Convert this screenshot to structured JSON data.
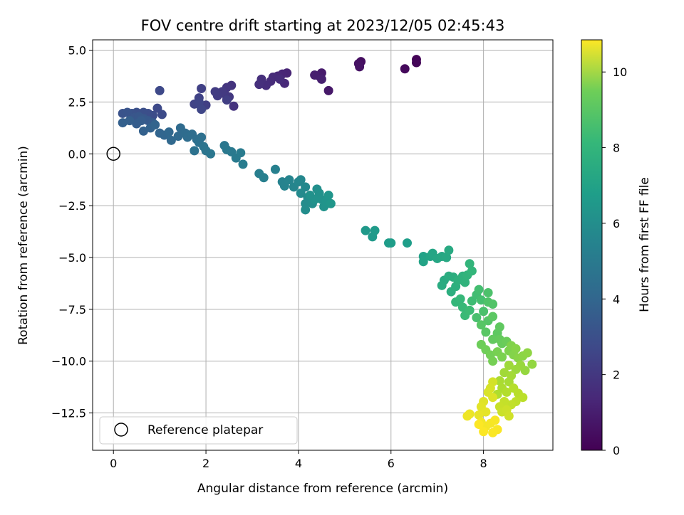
{
  "chart_data": {
    "type": "scatter",
    "title": "FOV centre drift starting at 2023/12/05 02:45:43",
    "xlabel": "Angular distance from reference (arcmin)",
    "ylabel": "Rotation from reference (arcmin)",
    "xlim": [
      -0.45,
      9.5
    ],
    "ylim": [
      -14.3,
      5.5
    ],
    "xticks": [
      0,
      2,
      4,
      6,
      8
    ],
    "xtick_labels": [
      "0",
      "2",
      "4",
      "6",
      "8"
    ],
    "yticks": [
      5.0,
      2.5,
      0.0,
      -2.5,
      -5.0,
      -7.5,
      -10.0,
      -12.5
    ],
    "ytick_labels": [
      "5.0",
      "2.5",
      "0.0",
      "−2.5",
      "−5.0",
      "−7.5",
      "−10.0",
      "−12.5"
    ],
    "grid": true,
    "legend": {
      "position": "lower-left",
      "label": "Reference platepar"
    },
    "reference_point": {
      "x": 0.0,
      "y": 0.0
    },
    "colorbar": {
      "label": "Hours from first FF file",
      "colormap": "viridis",
      "range": [
        0,
        10.85
      ],
      "ticks": [
        0,
        2,
        4,
        6,
        8,
        10
      ],
      "tick_labels": [
        "0",
        "2",
        "4",
        "6",
        "8",
        "10"
      ]
    },
    "points": [
      [
        6.55,
        4.55,
        0.1
      ],
      [
        6.55,
        4.4,
        0.15
      ],
      [
        6.3,
        4.1,
        0.25
      ],
      [
        5.35,
        4.45,
        0.4
      ],
      [
        5.3,
        4.35,
        0.5
      ],
      [
        5.32,
        4.2,
        0.55
      ],
      [
        4.65,
        3.05,
        0.7
      ],
      [
        4.5,
        3.9,
        0.8
      ],
      [
        4.45,
        3.75,
        0.85
      ],
      [
        4.35,
        3.8,
        0.9
      ],
      [
        4.5,
        3.6,
        0.95
      ],
      [
        3.75,
        3.9,
        1.1
      ],
      [
        3.65,
        3.85,
        1.15
      ],
      [
        3.55,
        3.75,
        1.2
      ],
      [
        3.7,
        3.4,
        1.25
      ],
      [
        3.45,
        3.7,
        1.3
      ],
      [
        3.4,
        3.5,
        1.35
      ],
      [
        3.3,
        3.3,
        1.4
      ],
      [
        3.2,
        3.6,
        1.45
      ],
      [
        3.15,
        3.35,
        1.5
      ],
      [
        3.6,
        3.6,
        1.35
      ],
      [
        2.6,
        2.3,
        1.6
      ],
      [
        2.55,
        3.3,
        1.65
      ],
      [
        2.45,
        3.2,
        1.7
      ],
      [
        2.4,
        2.9,
        1.75
      ],
      [
        2.5,
        2.75,
        1.8
      ],
      [
        2.35,
        3.0,
        1.85
      ],
      [
        2.25,
        2.8,
        1.9
      ],
      [
        2.2,
        3.0,
        1.95
      ],
      [
        2.45,
        2.6,
        2.0
      ],
      [
        2.0,
        2.35,
        2.05
      ],
      [
        1.9,
        3.15,
        2.1
      ],
      [
        1.85,
        2.7,
        2.15
      ],
      [
        1.75,
        2.4,
        2.2
      ],
      [
        1.85,
        2.5,
        2.25
      ],
      [
        1.9,
        2.15,
        2.3
      ],
      [
        1.0,
        3.05,
        2.4
      ],
      [
        0.95,
        2.2,
        2.45
      ],
      [
        1.05,
        1.9,
        2.5
      ],
      [
        0.85,
        1.85,
        2.55
      ],
      [
        0.75,
        1.95,
        2.6
      ],
      [
        0.65,
        2.0,
        2.65
      ],
      [
        0.5,
        2.0,
        2.7
      ],
      [
        0.4,
        1.95,
        2.75
      ],
      [
        0.2,
        1.95,
        2.8
      ],
      [
        0.3,
        2.0,
        2.85
      ],
      [
        0.45,
        1.75,
        2.9
      ],
      [
        0.55,
        1.8,
        2.95
      ],
      [
        0.65,
        1.7,
        3.0
      ],
      [
        0.75,
        1.6,
        3.05
      ],
      [
        0.85,
        1.5,
        3.1
      ],
      [
        0.6,
        1.6,
        3.15
      ],
      [
        0.5,
        1.45,
        3.2
      ],
      [
        0.35,
        1.6,
        3.25
      ],
      [
        0.2,
        1.5,
        3.3
      ],
      [
        0.65,
        1.1,
        3.35
      ],
      [
        0.8,
        1.25,
        3.4
      ],
      [
        0.9,
        1.4,
        3.45
      ],
      [
        1.0,
        1.0,
        3.5
      ],
      [
        1.1,
        0.9,
        3.55
      ],
      [
        1.2,
        1.05,
        3.6
      ],
      [
        1.25,
        0.65,
        3.65
      ],
      [
        1.4,
        0.85,
        3.7
      ],
      [
        1.45,
        1.25,
        3.75
      ],
      [
        1.55,
        1.0,
        3.8
      ],
      [
        1.6,
        0.8,
        3.85
      ],
      [
        1.7,
        0.95,
        3.9
      ],
      [
        1.8,
        0.7,
        3.95
      ],
      [
        1.9,
        0.8,
        4.0
      ],
      [
        1.85,
        0.55,
        4.05
      ],
      [
        1.75,
        0.15,
        4.1
      ],
      [
        1.95,
        0.35,
        4.15
      ],
      [
        2.0,
        0.15,
        4.2
      ],
      [
        2.1,
        0.0,
        4.25
      ],
      [
        2.4,
        0.4,
        4.3
      ],
      [
        2.45,
        0.2,
        4.35
      ],
      [
        2.55,
        0.1,
        4.4
      ],
      [
        2.65,
        -0.2,
        4.45
      ],
      [
        2.75,
        0.05,
        4.5
      ],
      [
        2.8,
        -0.5,
        4.55
      ],
      [
        3.15,
        -0.95,
        4.65
      ],
      [
        3.25,
        -1.15,
        4.7
      ],
      [
        3.5,
        -0.75,
        4.75
      ],
      [
        3.65,
        -1.35,
        4.8
      ],
      [
        3.7,
        -1.55,
        4.85
      ],
      [
        3.8,
        -1.25,
        4.9
      ],
      [
        3.9,
        -1.6,
        4.95
      ],
      [
        4.0,
        -1.35,
        5.0
      ],
      [
        4.05,
        -1.25,
        5.05
      ],
      [
        4.15,
        -1.6,
        5.1
      ],
      [
        4.05,
        -1.9,
        5.15
      ],
      [
        4.2,
        -2.1,
        5.2
      ],
      [
        4.15,
        -2.4,
        5.25
      ],
      [
        4.15,
        -2.7,
        5.3
      ],
      [
        4.3,
        -2.4,
        5.35
      ],
      [
        4.4,
        -1.7,
        5.4
      ],
      [
        4.45,
        -1.9,
        5.45
      ],
      [
        4.5,
        -2.2,
        5.5
      ],
      [
        4.55,
        -2.55,
        5.55
      ],
      [
        4.6,
        -2.3,
        5.6
      ],
      [
        4.65,
        -2.0,
        5.65
      ],
      [
        4.7,
        -2.4,
        5.7
      ],
      [
        4.35,
        -2.2,
        5.5
      ],
      [
        4.25,
        -2.0,
        5.45
      ],
      [
        5.45,
        -3.7,
        5.8
      ],
      [
        5.6,
        -4.0,
        5.85
      ],
      [
        5.65,
        -3.7,
        5.9
      ],
      [
        5.95,
        -4.3,
        5.95
      ],
      [
        6.0,
        -4.3,
        6.0
      ],
      [
        6.35,
        -4.3,
        6.05
      ],
      [
        6.7,
        -4.95,
        6.2
      ],
      [
        6.7,
        -5.2,
        6.25
      ],
      [
        6.85,
        -4.95,
        6.3
      ],
      [
        6.9,
        -4.8,
        6.35
      ],
      [
        7.0,
        -5.05,
        6.4
      ],
      [
        7.1,
        -4.95,
        6.45
      ],
      [
        7.2,
        -5.0,
        6.5
      ],
      [
        7.25,
        -4.65,
        6.55
      ],
      [
        7.15,
        -6.1,
        6.6
      ],
      [
        7.1,
        -6.35,
        6.65
      ],
      [
        7.25,
        -5.9,
        6.7
      ],
      [
        7.35,
        -5.95,
        6.75
      ],
      [
        7.3,
        -6.65,
        6.8
      ],
      [
        7.4,
        -6.4,
        6.85
      ],
      [
        7.45,
        -6.1,
        6.9
      ],
      [
        7.55,
        -5.9,
        6.95
      ],
      [
        7.6,
        -6.2,
        7.0
      ],
      [
        7.65,
        -5.85,
        7.05
      ],
      [
        7.7,
        -5.3,
        7.1
      ],
      [
        7.75,
        -5.65,
        7.15
      ],
      [
        7.4,
        -7.15,
        7.2
      ],
      [
        7.5,
        -7.0,
        7.25
      ],
      [
        7.55,
        -7.4,
        7.3
      ],
      [
        7.6,
        -7.8,
        7.35
      ],
      [
        7.7,
        -7.55,
        7.4
      ],
      [
        7.75,
        -7.1,
        7.45
      ],
      [
        7.85,
        -6.8,
        7.5
      ],
      [
        7.9,
        -6.55,
        7.55
      ],
      [
        7.95,
        -7.05,
        7.6
      ],
      [
        7.85,
        -7.9,
        7.65
      ],
      [
        8.0,
        -7.6,
        7.7
      ],
      [
        8.1,
        -6.7,
        7.75
      ],
      [
        8.1,
        -7.15,
        7.8
      ],
      [
        8.2,
        -7.25,
        7.85
      ],
      [
        8.1,
        -8.05,
        7.9
      ],
      [
        7.95,
        -8.25,
        7.95
      ],
      [
        8.05,
        -8.6,
        8.0
      ],
      [
        8.2,
        -7.85,
        8.05
      ],
      [
        8.3,
        -8.65,
        8.1
      ],
      [
        8.35,
        -8.35,
        8.15
      ],
      [
        8.2,
        -8.95,
        8.2
      ],
      [
        8.35,
        -8.95,
        8.25
      ],
      [
        8.4,
        -9.15,
        8.3
      ],
      [
        8.5,
        -9.05,
        8.35
      ],
      [
        7.95,
        -9.2,
        8.4
      ],
      [
        8.05,
        -9.45,
        8.45
      ],
      [
        8.15,
        -9.7,
        8.5
      ],
      [
        8.2,
        -10.0,
        8.55
      ],
      [
        8.3,
        -9.55,
        8.6
      ],
      [
        8.4,
        -9.8,
        8.65
      ],
      [
        8.55,
        -9.5,
        8.7
      ],
      [
        8.6,
        -9.25,
        8.75
      ],
      [
        8.65,
        -9.7,
        8.8
      ],
      [
        8.7,
        -9.4,
        8.85
      ],
      [
        8.75,
        -9.85,
        8.9
      ],
      [
        8.85,
        -9.75,
        8.95
      ],
      [
        8.95,
        -9.6,
        9.0
      ],
      [
        9.05,
        -10.15,
        9.05
      ],
      [
        8.9,
        -10.45,
        9.1
      ],
      [
        8.8,
        -10.2,
        9.15
      ],
      [
        8.7,
        -10.4,
        9.2
      ],
      [
        8.55,
        -10.2,
        9.25
      ],
      [
        8.45,
        -10.55,
        9.3
      ],
      [
        8.6,
        -10.7,
        9.35
      ],
      [
        8.55,
        -11.0,
        9.4
      ],
      [
        8.35,
        -10.95,
        9.45
      ],
      [
        8.4,
        -11.3,
        9.5
      ],
      [
        8.3,
        -11.6,
        9.55
      ],
      [
        8.5,
        -11.5,
        9.6
      ],
      [
        8.65,
        -11.3,
        9.65
      ],
      [
        8.75,
        -11.55,
        9.7
      ],
      [
        8.85,
        -11.75,
        9.75
      ],
      [
        8.7,
        -11.95,
        9.8
      ],
      [
        8.6,
        -12.1,
        9.85
      ],
      [
        8.45,
        -11.95,
        9.9
      ],
      [
        8.35,
        -12.2,
        9.95
      ],
      [
        8.4,
        -12.45,
        10.0
      ],
      [
        8.5,
        -12.35,
        10.05
      ],
      [
        8.55,
        -12.65,
        10.1
      ],
      [
        8.2,
        -11.0,
        10.15
      ],
      [
        8.15,
        -11.3,
        10.2
      ],
      [
        8.1,
        -11.5,
        10.25
      ],
      [
        8.2,
        -11.75,
        10.3
      ],
      [
        8.0,
        -11.95,
        10.35
      ],
      [
        7.95,
        -12.2,
        10.4
      ],
      [
        8.05,
        -12.45,
        10.45
      ],
      [
        7.9,
        -12.6,
        10.5
      ],
      [
        7.7,
        -12.55,
        10.55
      ],
      [
        7.65,
        -12.65,
        10.6
      ],
      [
        7.95,
        -12.95,
        10.65
      ],
      [
        8.05,
        -13.15,
        10.7
      ],
      [
        8.15,
        -13.0,
        10.72
      ],
      [
        8.25,
        -12.85,
        10.75
      ],
      [
        8.3,
        -13.3,
        10.78
      ],
      [
        8.2,
        -13.45,
        10.8
      ],
      [
        8.0,
        -13.4,
        10.82
      ],
      [
        7.9,
        -13.05,
        10.84
      ]
    ]
  }
}
